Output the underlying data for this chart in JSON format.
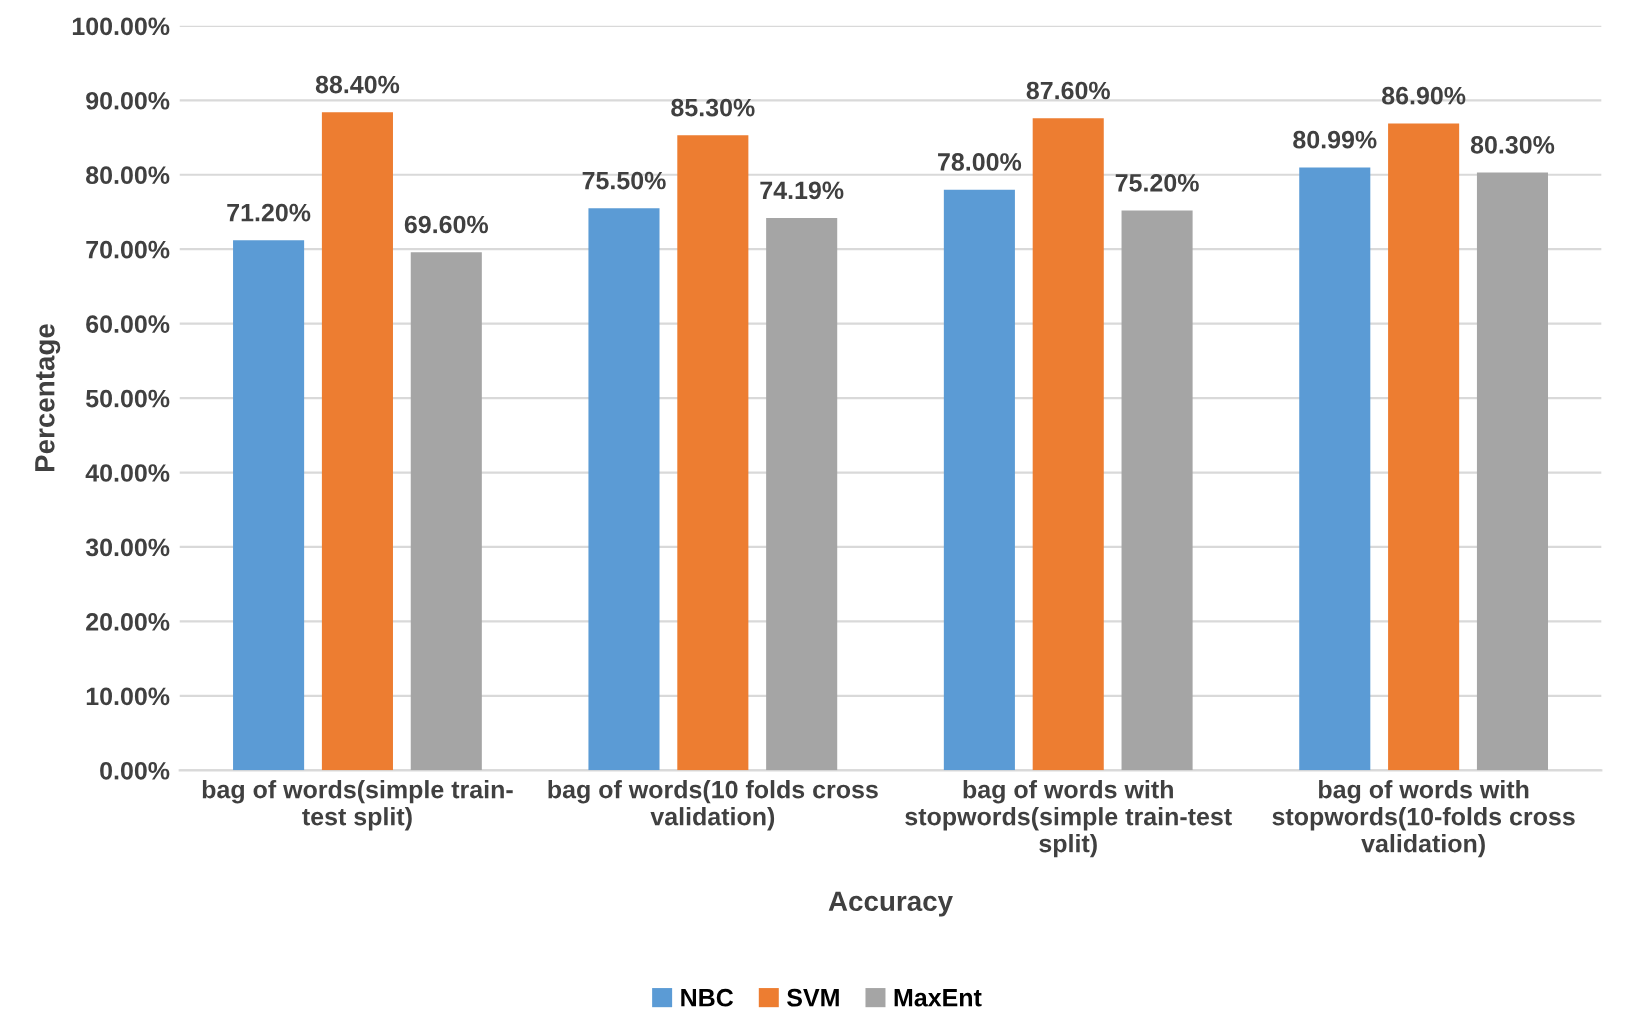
{
  "chart_data": {
    "type": "bar",
    "categories": [
      "bag of words(simple train-\ntest split)",
      "bag of words(10 folds cross\nvalidation)",
      "bag of words with\nstopwords(simple train-test\nsplit)",
      "bag of words with\nstopwords(10-folds cross\nvalidation)"
    ],
    "series": [
      {
        "name": "NBC",
        "color": "#5b9bd5",
        "values": [
          71.2,
          75.5,
          78.0,
          80.99
        ],
        "value_labels": [
          "71.20%",
          "75.50%",
          "78.00%",
          "80.99%"
        ]
      },
      {
        "name": "SVM",
        "color": "#ed7d31",
        "values": [
          88.4,
          85.3,
          87.6,
          86.9
        ],
        "value_labels": [
          "88.40%",
          "85.30%",
          "87.60%",
          "86.90%"
        ]
      },
      {
        "name": "MaxEnt",
        "color": "#a5a5a5",
        "values": [
          69.6,
          74.19,
          75.2,
          80.3
        ],
        "value_labels": [
          "69.60%",
          "74.19%",
          "75.20%",
          "80.30%"
        ]
      }
    ],
    "xlabel": "Accuracy",
    "ylabel": "Percentage",
    "ylim": [
      0,
      100
    ],
    "yticks": [
      {
        "value": 0,
        "label": "0.00%"
      },
      {
        "value": 10,
        "label": "10.00%"
      },
      {
        "value": 20,
        "label": "20.00%"
      },
      {
        "value": 30,
        "label": "30.00%"
      },
      {
        "value": 40,
        "label": "40.00%"
      },
      {
        "value": 50,
        "label": "50.00%"
      },
      {
        "value": 60,
        "label": "60.00%"
      },
      {
        "value": 70,
        "label": "70.00%"
      },
      {
        "value": 80,
        "label": "80.00%"
      },
      {
        "value": 90,
        "label": "90.00%"
      },
      {
        "value": 100,
        "label": "100.00%"
      }
    ],
    "grid": "y",
    "legend": "bottom"
  }
}
